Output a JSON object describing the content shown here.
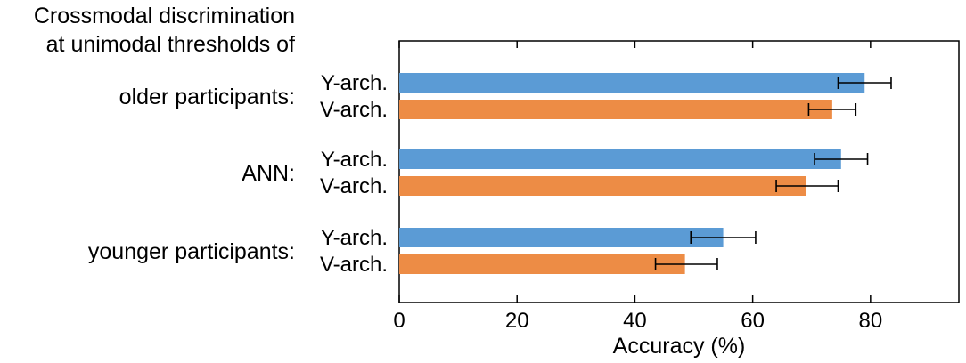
{
  "chart_data": {
    "type": "bar",
    "orientation": "horizontal",
    "title_lines": [
      "Crossmodal discrimination",
      "at unimodal thresholds of"
    ],
    "xlabel": "Accuracy (%)",
    "xlim": [
      0,
      95
    ],
    "xticks": [
      0,
      20,
      40,
      60,
      80
    ],
    "groups": [
      {
        "label": "older participants:",
        "bars": [
          {
            "label": "Y-arch.",
            "value": 79,
            "error_low": 74.5,
            "error_high": 83.5,
            "color": "#5b9bd5"
          },
          {
            "label": "V-arch.",
            "value": 73.5,
            "error_low": 69.5,
            "error_high": 77.5,
            "color": "#ed8c45"
          }
        ]
      },
      {
        "label": "ANN:",
        "bars": [
          {
            "label": "Y-arch.",
            "value": 75,
            "error_low": 70.5,
            "error_high": 79.5,
            "color": "#5b9bd5"
          },
          {
            "label": "V-arch.",
            "value": 69,
            "error_low": 64,
            "error_high": 74.5,
            "color": "#ed8c45"
          }
        ]
      },
      {
        "label": "younger participants:",
        "bars": [
          {
            "label": "Y-arch.",
            "value": 55,
            "error_low": 49.5,
            "error_high": 60.5,
            "color": "#5b9bd5"
          },
          {
            "label": "V-arch.",
            "value": 48.5,
            "error_low": 43.5,
            "error_high": 54,
            "color": "#ed8c45"
          }
        ]
      }
    ]
  }
}
